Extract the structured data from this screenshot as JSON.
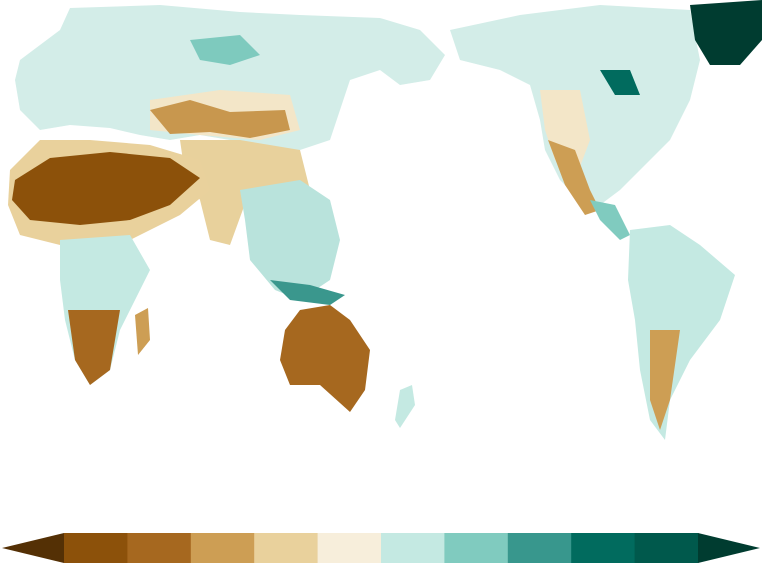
{
  "colorbar": {
    "under": "#543005",
    "colors": [
      "#8c510a",
      "#a6681f",
      "#cd9e54",
      "#e9d19c",
      "#f7eedb",
      "#c4e9e2",
      "#80cbbf",
      "#38978d",
      "#016b5e",
      "#00594c"
    ],
    "over": "#003c30"
  }
}
